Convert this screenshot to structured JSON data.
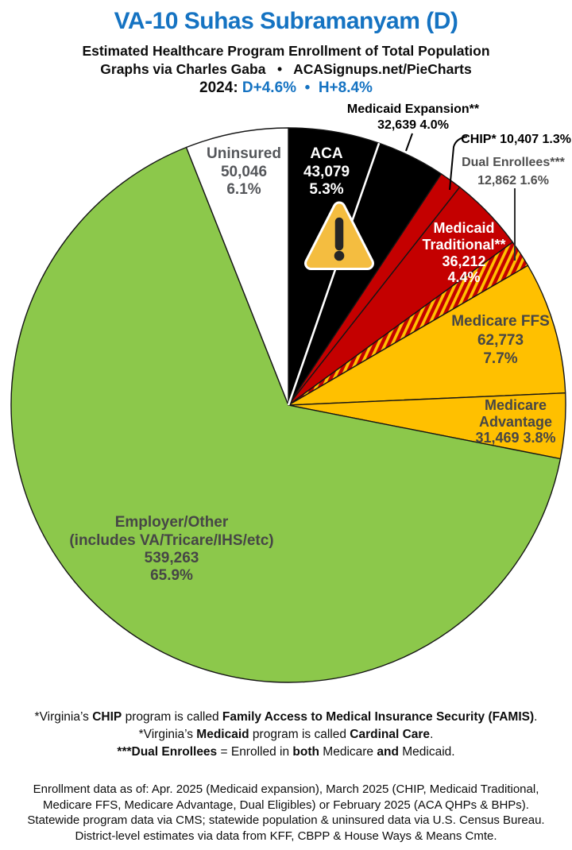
{
  "header": {
    "title": "VA-10 Suhas Subramanyam (D)",
    "subtitle1": "Estimated Healthcare Program Enrollment of Total Population",
    "subtitle2": "Graphs via Charles Gaba   •   ACASignups.net/PieCharts",
    "year_line": [
      {
        "t": "2024: "
      },
      {
        "t": "D+4.6%",
        "c": "#1573C2"
      },
      {
        "t": "  •  ",
        "c": "#1573C2"
      },
      {
        "t": "H+8.4%",
        "c": "#1573C2"
      }
    ]
  },
  "colors": {
    "accent_blue": "#1573C2",
    "black_slice": "#000000",
    "red_slice": "#C40000",
    "gold_slice": "#FFC000",
    "green_slice": "#8CC84B",
    "white_slice": "#FFFFFF",
    "gray_label": "#464646",
    "warning_amber": "#F4BD40"
  },
  "chart_data": {
    "type": "pie",
    "title": "Estimated Healthcare Program Enrollment of Total Population",
    "units": "people",
    "start_angle_deg": 0,
    "direction": "clockwise",
    "legend": "labels-on-chart",
    "slices": [
      {
        "name": "ACA",
        "value": 43079,
        "pct": 5.3,
        "color": "#000000",
        "label_color": "#FFFFFF"
      },
      {
        "name": "Medicaid Expansion**",
        "value": 32639,
        "pct": 4.0,
        "color": "#000000",
        "label_color": "#000000"
      },
      {
        "name": "CHIP*",
        "value": 10407,
        "pct": 1.3,
        "color": "#C40000",
        "label_color": "#000000"
      },
      {
        "name": "Medicaid Traditional**",
        "value": 36212,
        "pct": 4.4,
        "color": "#C40000",
        "label_color": "#FFFFFF"
      },
      {
        "name": "Dual Enrollees***",
        "value": 12862,
        "pct": 1.6,
        "color": "#C40000 with #FFC000 stripes",
        "label_color": "#4F4F4F"
      },
      {
        "name": "Medicare FFS",
        "value": 62773,
        "pct": 7.7,
        "color": "#FFC000",
        "label_color": "#464646"
      },
      {
        "name": "Medicare Advantage",
        "value": 31469,
        "pct": 3.8,
        "color": "#FFC000",
        "label_color": "#464646"
      },
      {
        "name": "Employer/Other (includes VA/Tricare/IHS/etc)",
        "value": 539263,
        "pct": 65.9,
        "color": "#8CC84B",
        "label_color": "#464646"
      },
      {
        "name": "Uninsured",
        "value": 50046,
        "pct": 6.1,
        "color": "#FFFFFF",
        "label_color": "#54565A"
      }
    ]
  },
  "pie_labels": {
    "aca": [
      "ACA",
      "43,079",
      "5.3%"
    ],
    "expansion": [
      "Medicaid Expansion**",
      "32,639 4.0%"
    ],
    "chip": "CHIP* 10,407 1.3%",
    "dual": [
      "Dual Enrollees***",
      "12,862 1.6%"
    ],
    "traditional": [
      "Medicaid",
      "Traditional**",
      "36,212",
      "4.4%"
    ],
    "ffs": [
      "Medicare FFS",
      "62,773",
      "7.7%"
    ],
    "advantage": [
      "Medicare",
      "Advantage",
      "31,469 3.8%"
    ],
    "employer": [
      "Employer/Other",
      "(includes VA/Tricare/IHS/etc)",
      "539,263",
      "65.9%"
    ],
    "uninsured": [
      "Uninsured",
      "50,046",
      "6.1%"
    ]
  },
  "icons": {
    "warning": "warning-triangle-exclamation"
  },
  "footnotes": {
    "lines": [
      [
        {
          "t": "*Virginia’s "
        },
        {
          "t": "CHIP",
          "b": 1
        },
        {
          "t": " program is called "
        },
        {
          "t": "Family Access to Medical Insurance Security (FAMIS)",
          "b": 1
        },
        {
          "t": "."
        }
      ],
      [
        {
          "t": "*Virginia’s "
        },
        {
          "t": "Medicaid",
          "b": 1
        },
        {
          "t": " program is called "
        },
        {
          "t": "Cardinal Care",
          "b": 1
        },
        {
          "t": "."
        }
      ],
      [
        {
          "t": "***Dual Enrollees",
          "b": 1
        },
        {
          "t": " = Enrolled in "
        },
        {
          "t": "both",
          "b": 1
        },
        {
          "t": " Medicare "
        },
        {
          "t": "and",
          "b": 1
        },
        {
          "t": " Medicaid."
        }
      ]
    ]
  },
  "source_note": {
    "text": "Enrollment data as of: Apr. 2025 (Medicaid expansion), March 2025 (CHIP, Medicaid Traditional,\nMedicare FFS, Medicare Advantage, Dual Eligibles) or February 2025 (ACA QHPs & BHPs).\nStatewide program data via CMS; statewide population & uninsured data via U.S. Census Bureau.\nDistrict-level estimates via data from KFF, CBPP & House Ways & Means Cmte."
  }
}
